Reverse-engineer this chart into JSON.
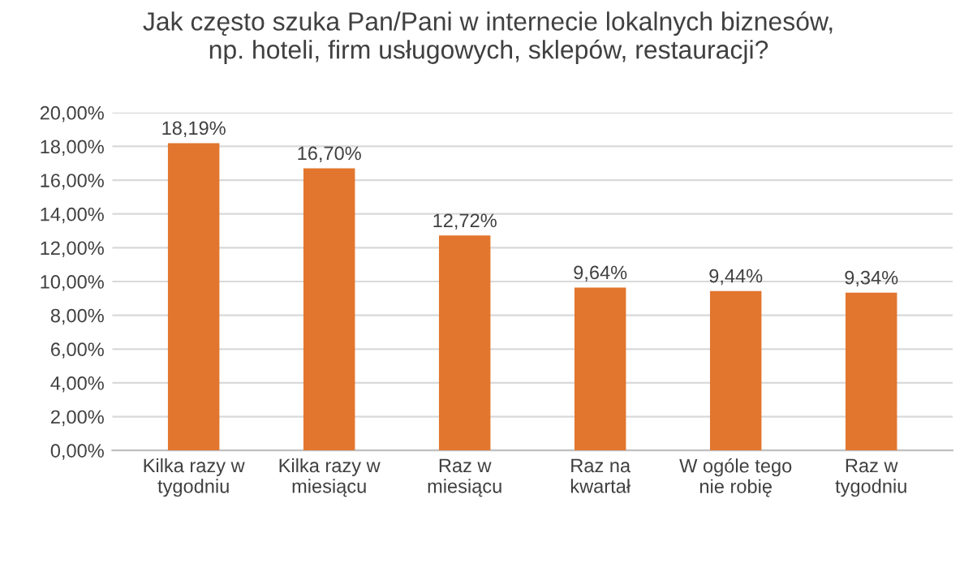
{
  "chart_data": {
    "type": "bar",
    "title": "Jak często szuka Pan/Pani w internecie lokalnych biznesów,\nnp. hoteli, firm usługowych, sklepów, restauracji?",
    "categories": [
      "Kilka razy w\ntygodniu",
      "Kilka razy w\nmiesiącu",
      "Raz w\nmiesiącu",
      "Raz na\nkwartał",
      "W ogóle tego\nnie robię",
      "Raz w\ntygodniu"
    ],
    "values": [
      18.19,
      16.7,
      12.72,
      9.64,
      9.44,
      9.34
    ],
    "value_labels": [
      "18,19%",
      "16,70%",
      "12,72%",
      "9,64%",
      "9,44%",
      "9,34%"
    ],
    "color": "#e2762e",
    "ylim": [
      0,
      20
    ],
    "yticks": [
      {
        "value": 0,
        "label": "0,00%"
      },
      {
        "value": 2,
        "label": "2,00%"
      },
      {
        "value": 4,
        "label": "4,00%"
      },
      {
        "value": 6,
        "label": "6,00%"
      },
      {
        "value": 8,
        "label": "8,00%"
      },
      {
        "value": 10,
        "label": "10,00%"
      },
      {
        "value": 12,
        "label": "12,00%"
      },
      {
        "value": 14,
        "label": "14,00%"
      },
      {
        "value": 16,
        "label": "16,00%"
      },
      {
        "value": 18,
        "label": "18,00%"
      },
      {
        "value": 20,
        "label": "20,00%"
      }
    ],
    "grid": "y"
  }
}
